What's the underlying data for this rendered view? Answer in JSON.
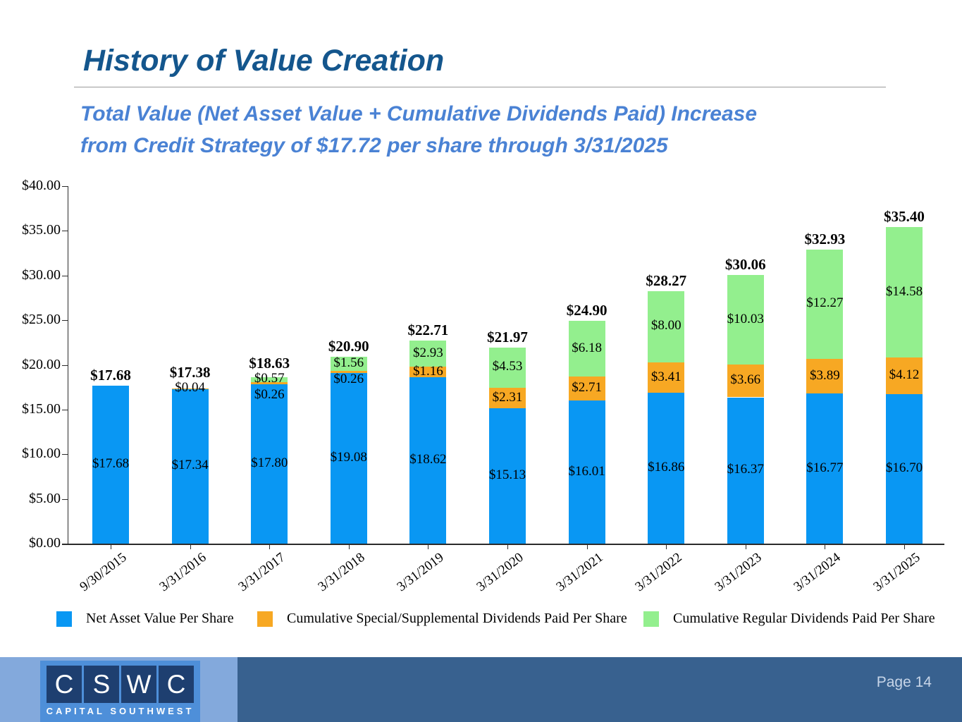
{
  "slide": {
    "title": "History of Value Creation",
    "subtitle_line1": "Total Value (Net Asset Value + Cumulative Dividends Paid) Increase",
    "subtitle_line2": "from Credit Strategy of $17.72 per share through 3/31/2025"
  },
  "chart_data": {
    "type": "bar",
    "stacked": true,
    "title": "",
    "xlabel": "",
    "ylabel": "",
    "ylim": [
      0,
      40
    ],
    "ytick_step": 5,
    "value_prefix": "$",
    "value_decimals": 2,
    "grid": false,
    "legend_position": "bottom",
    "categories": [
      "9/30/2015",
      "3/31/2016",
      "3/31/2017",
      "3/31/2018",
      "3/31/2019",
      "3/31/2020",
      "3/31/2021",
      "3/31/2022",
      "3/31/2023",
      "3/31/2024",
      "3/31/2025"
    ],
    "series": [
      {
        "name": "Net Asset Value Per Share",
        "color": "#0997F3",
        "values": [
          17.68,
          17.34,
          17.8,
          19.08,
          18.62,
          15.13,
          16.01,
          16.86,
          16.37,
          16.77,
          16.7
        ]
      },
      {
        "name": "Cumulative Special/Supplemental Dividends Paid Per Share",
        "color": "#F7A823",
        "values": [
          0,
          0.04,
          0.26,
          0.26,
          1.16,
          2.31,
          2.71,
          3.41,
          3.66,
          3.89,
          4.12
        ]
      },
      {
        "name": "Cumulative Regular Dividends Paid Per Share",
        "color": "#93EF8E",
        "values": [
          0,
          0,
          0.57,
          1.56,
          2.93,
          4.53,
          6.18,
          8.0,
          10.03,
          12.27,
          14.58
        ]
      }
    ],
    "totals": [
      17.68,
      17.38,
      18.63,
      20.9,
      22.71,
      21.97,
      24.9,
      28.27,
      30.06,
      32.93,
      35.4
    ]
  },
  "footer": {
    "page_label": "Page 14",
    "logo": {
      "letters": [
        "C",
        "S",
        "W",
        "C"
      ],
      "caption": "CAPITAL SOUTHWEST"
    }
  }
}
